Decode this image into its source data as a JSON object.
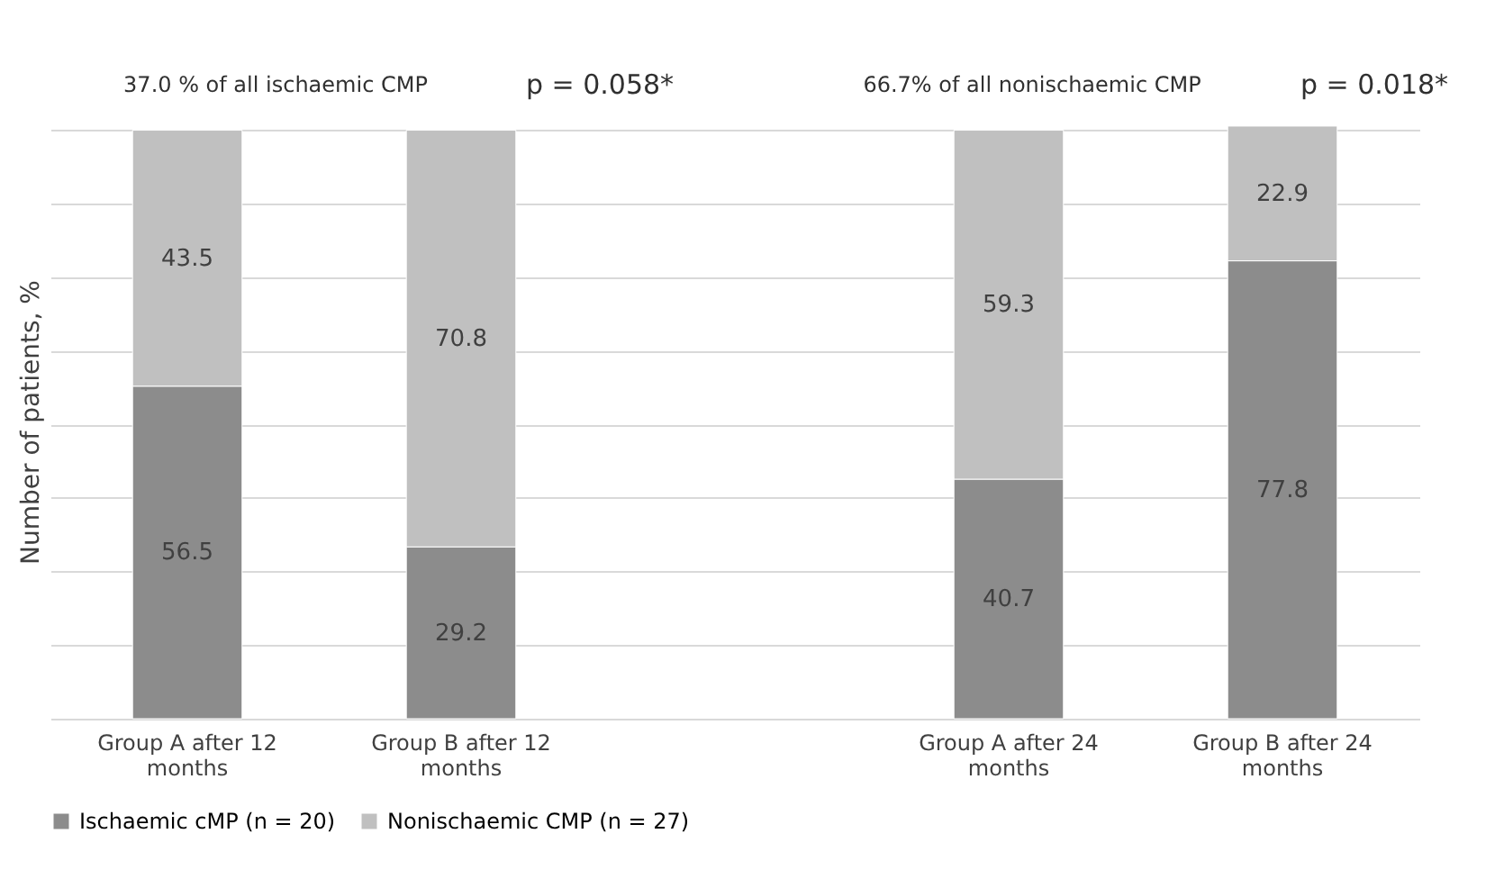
{
  "chart_data": {
    "type": "bar",
    "stacked": true,
    "ylabel": "Number of patients, %",
    "categories": [
      "Group A after 12 months",
      "Group B after 12 months",
      null,
      "Group A after 24 months",
      "Group B after 24 months"
    ],
    "series": [
      {
        "name": "Ischaemic cMP (n = 20)",
        "color": "#8c8c8c",
        "values": [
          56.5,
          29.2,
          null,
          40.7,
          77.8
        ]
      },
      {
        "name": "Nonischaemic CMP (n = 27)",
        "color": "#c0c0c0",
        "values": [
          43.5,
          70.8,
          null,
          59.3,
          22.9
        ]
      }
    ],
    "ylim": [
      0,
      101
    ],
    "yticks": [
      {
        "value": 0,
        "label": null
      },
      {
        "value": 12.5,
        "label": null
      },
      {
        "value": 25,
        "label": null
      },
      {
        "value": 37.5,
        "label": null
      },
      {
        "value": 50,
        "label": null
      },
      {
        "value": 62.5,
        "label": null
      },
      {
        "value": 75,
        "label": null
      },
      {
        "value": 87.5,
        "label": null
      },
      {
        "value": 100,
        "label": null
      }
    ],
    "grid": "y",
    "tick_labels": "x",
    "data_labels": true,
    "legend": "bottom",
    "annotations": [
      "37.0 % of all ischaemic CMP",
      "p = 0.058*",
      "66.7% of all nonischaemic CMP",
      "p = 0.018*"
    ]
  }
}
